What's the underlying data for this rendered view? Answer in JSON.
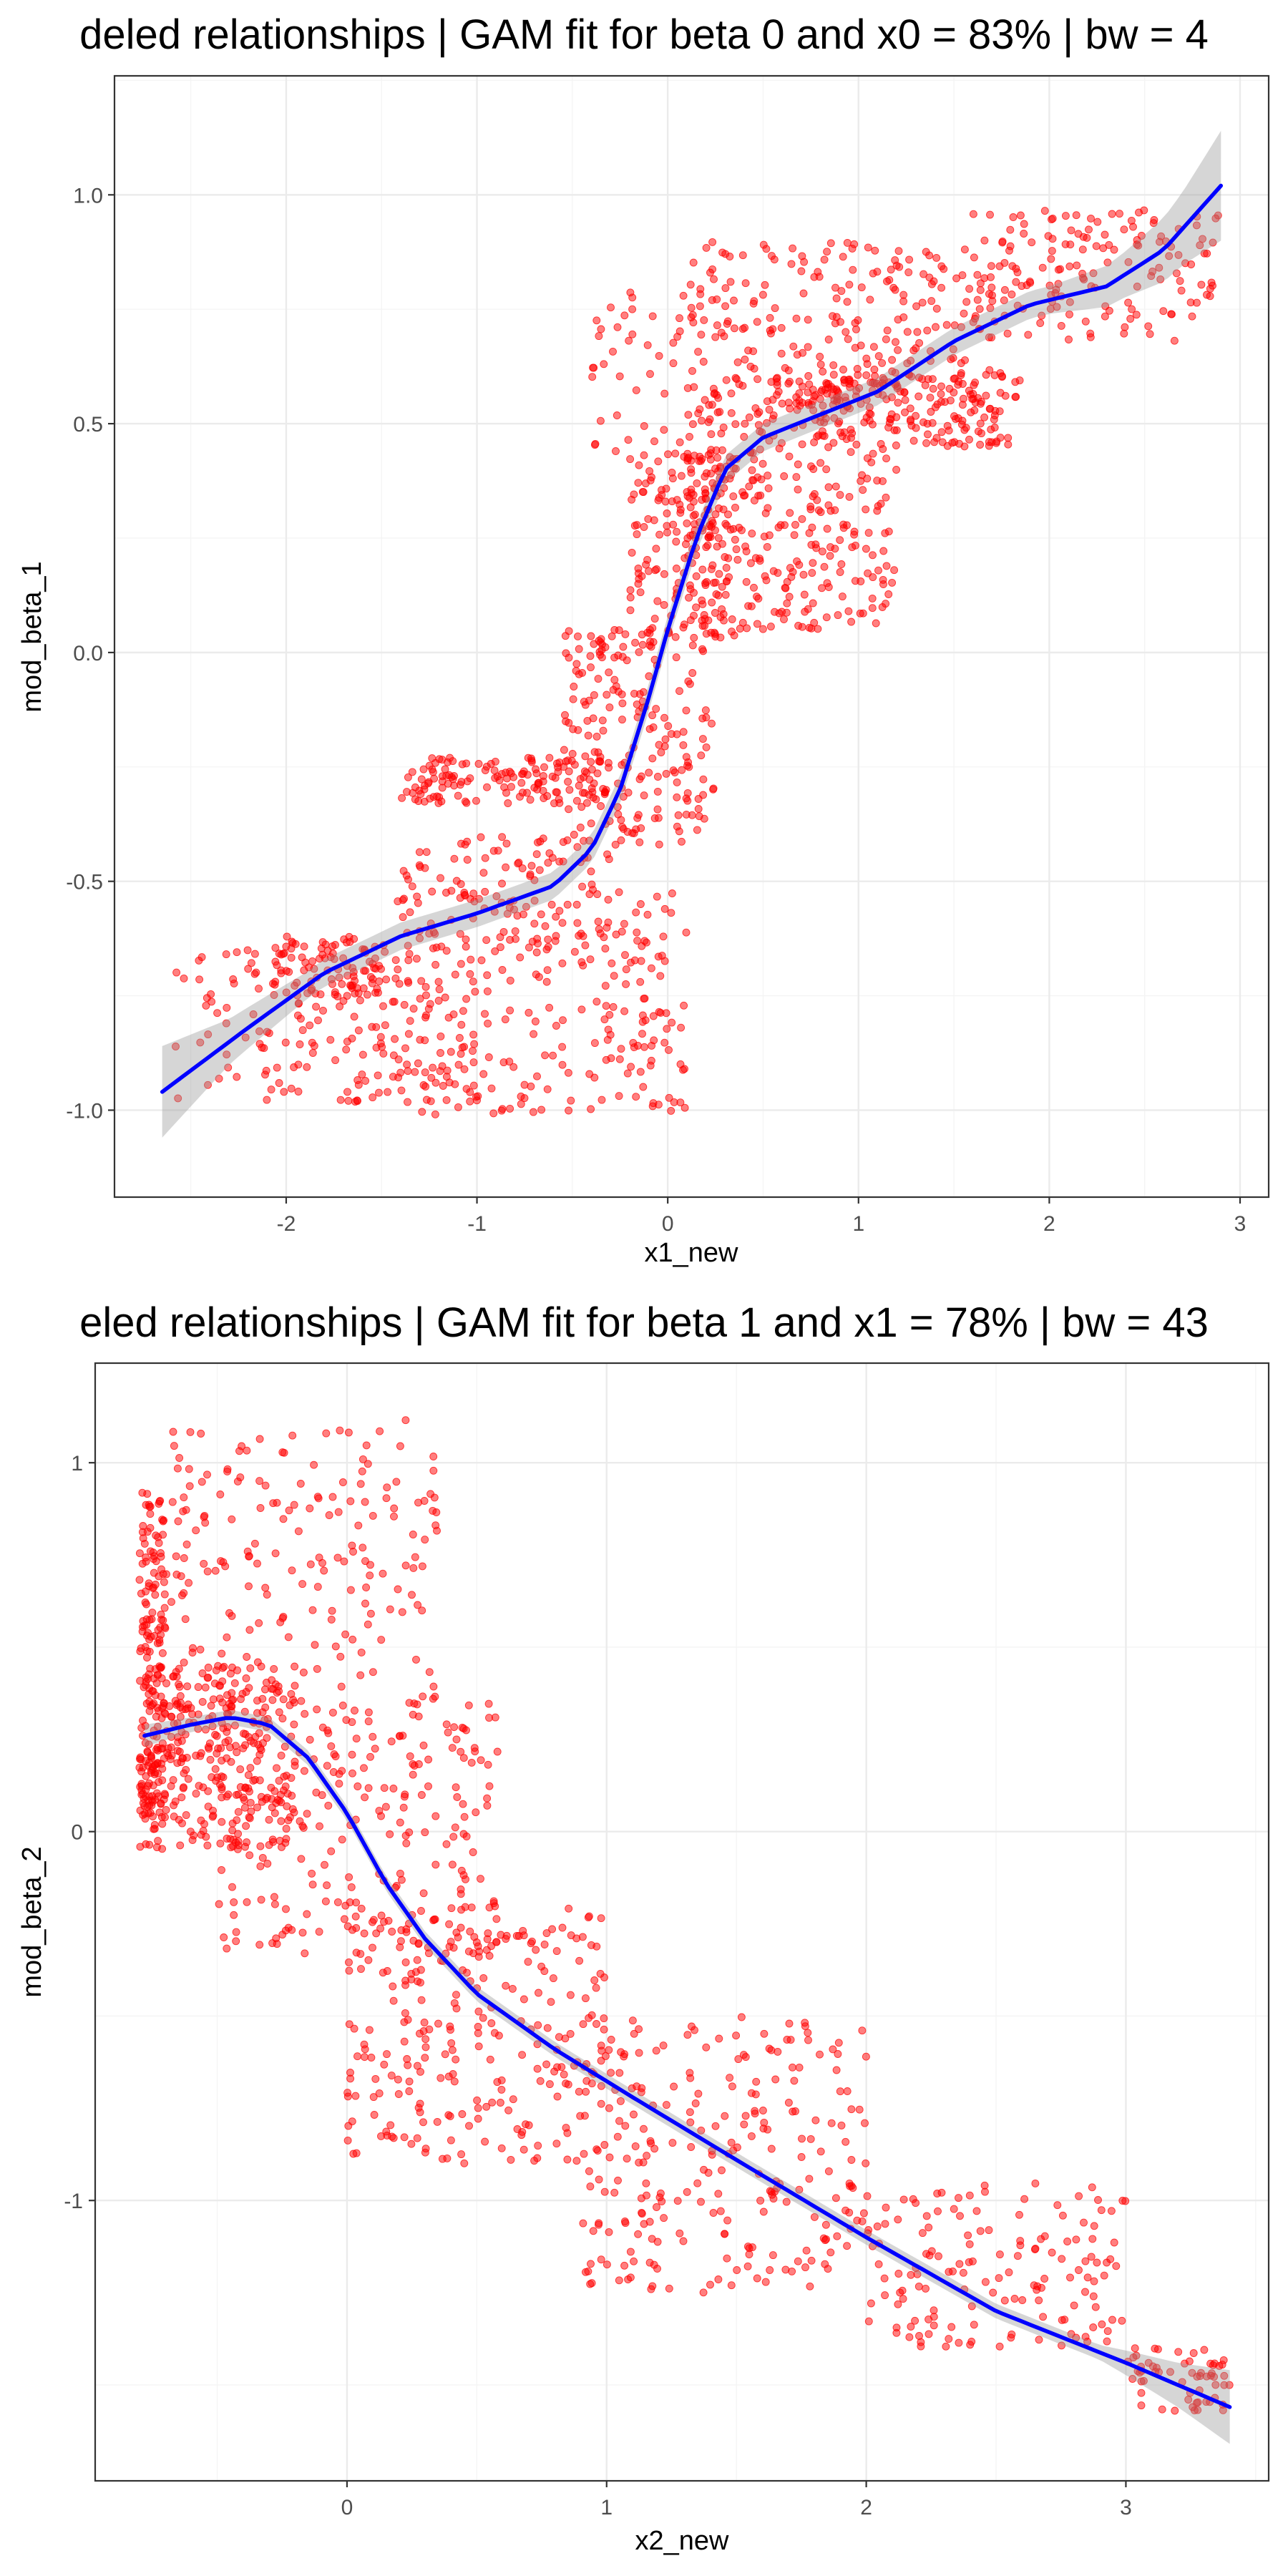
{
  "colors": {
    "points": "#ff0000",
    "fit_line": "#0000ff",
    "ci_band": "#999999",
    "background": "#ffffff",
    "grid": "#ebebeb",
    "panel_border": "#333333"
  },
  "chart_data": [
    {
      "type": "scatter",
      "title": "deled relationships | GAM fit for beta 0 and x0 = 83% | bw = 4",
      "xlabel": "x1_new",
      "ylabel": "mod_beta_1",
      "xlim": [
        -2.9,
        3.15
      ],
      "ylim": [
        -1.19,
        1.26
      ],
      "x_ticks": [
        -2,
        -1,
        0,
        1,
        2,
        3
      ],
      "x_tick_labels": [
        "-2",
        "-1",
        "0",
        "1",
        "2",
        "3"
      ],
      "y_ticks": [
        -1.0,
        -0.5,
        0.0,
        0.5,
        1.0
      ],
      "y_tick_labels": [
        "-1.0",
        "-0.5",
        "0.0",
        "0.5",
        "1.0"
      ],
      "grid": true,
      "legend": "none",
      "point_clusters": [
        {
          "x": [
            -2.6,
            -1.0
          ],
          "y": [
            -0.98,
            -0.62
          ],
          "n": 160
        },
        {
          "x": [
            -2.2,
            -1.5
          ],
          "y": [
            -0.75,
            -0.62
          ],
          "n": 70
        },
        {
          "x": [
            -1.4,
            -0.3
          ],
          "y": [
            -0.66,
            -0.4
          ],
          "n": 110
        },
        {
          "x": [
            -1.7,
            0.05
          ],
          "y": [
            -1.01,
            -0.52
          ],
          "n": 200
        },
        {
          "x": [
            -0.35,
            0.1
          ],
          "y": [
            -1.0,
            -0.6
          ],
          "n": 50
        },
        {
          "x": [
            -1.4,
            -0.3
          ],
          "y": [
            -0.33,
            -0.23
          ],
          "n": 140
        },
        {
          "x": [
            -0.55,
            0.25
          ],
          "y": [
            -0.42,
            0.05
          ],
          "n": 200
        },
        {
          "x": [
            -0.2,
            0.35
          ],
          "y": [
            0.0,
            0.45
          ],
          "n": 160
        },
        {
          "x": [
            0.1,
            1.2
          ],
          "y": [
            0.05,
            0.45
          ],
          "n": 260
        },
        {
          "x": [
            0.7,
            1.85
          ],
          "y": [
            0.45,
            0.62
          ],
          "n": 140
        },
        {
          "x": [
            0.1,
            1.7
          ],
          "y": [
            0.5,
            0.9
          ],
          "n": 280
        },
        {
          "x": [
            1.6,
            2.9
          ],
          "y": [
            0.68,
            0.97
          ],
          "n": 160
        },
        {
          "x": [
            -0.4,
            0.2
          ],
          "y": [
            0.4,
            0.8
          ],
          "n": 50
        },
        {
          "x": [
            0.2,
            1.2
          ],
          "y": [
            0.45,
            0.6
          ],
          "n": 70
        }
      ],
      "fit_line": {
        "x": [
          -2.65,
          -2.2,
          -1.8,
          -1.4,
          -1.0,
          -0.6,
          -0.4,
          -0.25,
          -0.1,
          0.0,
          0.15,
          0.3,
          0.5,
          0.8,
          1.1,
          1.5,
          1.9,
          2.3,
          2.6,
          2.9
        ],
        "y": [
          -0.96,
          -0.82,
          -0.7,
          -0.62,
          -0.57,
          -0.51,
          -0.43,
          -0.3,
          -0.1,
          0.05,
          0.25,
          0.4,
          0.47,
          0.52,
          0.57,
          0.68,
          0.76,
          0.8,
          0.88,
          1.02
        ]
      },
      "ci_halfwidth": {
        "x": [
          -2.65,
          -2.3,
          -1.9,
          2.0,
          2.4,
          2.7,
          2.9
        ],
        "w": [
          0.1,
          0.05,
          0.03,
          0.03,
          0.05,
          0.08,
          0.12
        ]
      }
    },
    {
      "type": "scatter",
      "title": "eled relationships | GAM fit for beta 1 and x1 = 78% | bw = 43",
      "xlabel": "x2_new",
      "ylabel": "mod_beta_2",
      "xlim": [
        -0.97,
        3.55
      ],
      "ylim": [
        -1.76,
        1.27
      ],
      "x_ticks": [
        0,
        1,
        2,
        3
      ],
      "x_tick_labels": [
        "0",
        "1",
        "2",
        "3"
      ],
      "y_ticks": [
        -1,
        0,
        1
      ],
      "y_tick_labels": [
        "-1",
        "0",
        "1"
      ],
      "grid": true,
      "legend": "none",
      "point_clusters": [
        {
          "x": [
            -0.8,
            -0.7
          ],
          "y": [
            -0.05,
            0.92
          ],
          "n": 170
        },
        {
          "x": [
            -0.8,
            -0.2
          ],
          "y": [
            -0.05,
            0.45
          ],
          "n": 300
        },
        {
          "x": [
            -0.7,
            0.35
          ],
          "y": [
            0.2,
            1.12
          ],
          "n": 220
        },
        {
          "x": [
            -0.5,
            0.6
          ],
          "y": [
            -0.35,
            0.35
          ],
          "n": 220
        },
        {
          "x": [
            0.0,
            1.0
          ],
          "y": [
            -0.9,
            -0.2
          ],
          "n": 250
        },
        {
          "x": [
            0.9,
            2.0
          ],
          "y": [
            -1.25,
            -0.5
          ],
          "n": 250
        },
        {
          "x": [
            2.0,
            3.0
          ],
          "y": [
            -1.4,
            -0.95
          ],
          "n": 150
        },
        {
          "x": [
            3.0,
            3.4
          ],
          "y": [
            -1.57,
            -1.4
          ],
          "n": 60
        }
      ],
      "fit_line": {
        "x": [
          -0.78,
          -0.6,
          -0.45,
          -0.3,
          -0.15,
          0.0,
          0.15,
          0.3,
          0.5,
          0.8,
          1.1,
          1.5,
          2.0,
          2.5,
          3.0,
          3.4
        ],
        "y": [
          0.26,
          0.29,
          0.31,
          0.29,
          0.2,
          0.05,
          -0.14,
          -0.29,
          -0.44,
          -0.59,
          -0.72,
          -0.89,
          -1.1,
          -1.3,
          -1.44,
          -1.56
        ]
      },
      "ci_halfwidth": {
        "x": [
          -0.78,
          -0.6,
          0.0,
          2.9,
          3.2,
          3.4
        ],
        "w": [
          0.03,
          0.02,
          0.02,
          0.02,
          0.06,
          0.1
        ]
      }
    }
  ]
}
